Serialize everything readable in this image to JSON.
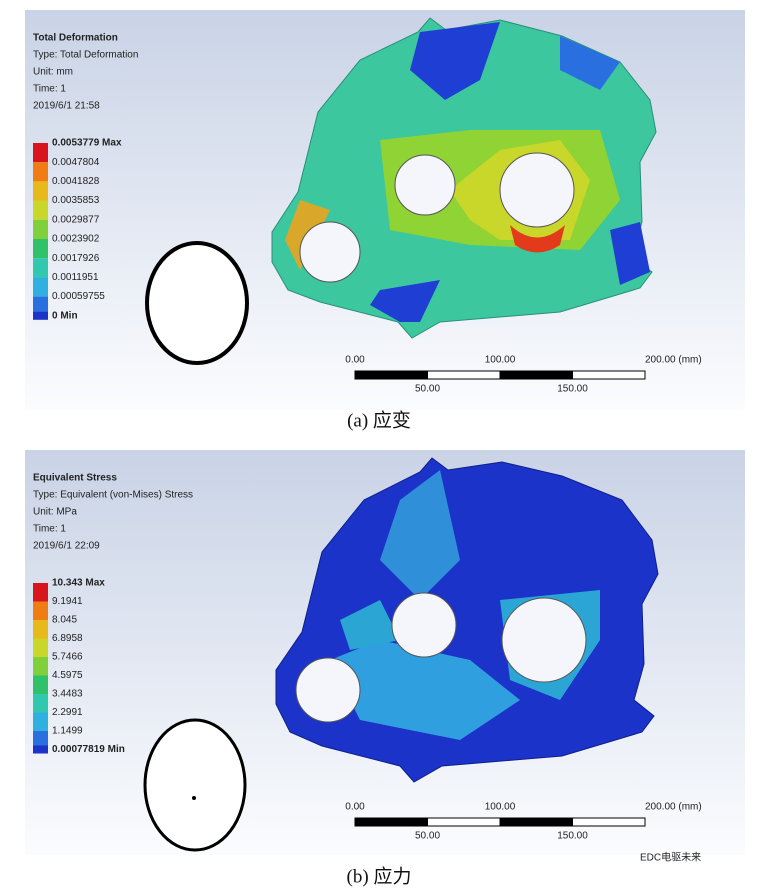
{
  "panels": [
    {
      "info": [
        "Total Deformation",
        "Type: Total Deformation",
        "Unit: mm",
        "Time: 1",
        "2019/6/1 21:58"
      ],
      "legend": [
        "0.0053779 Max",
        "0.0047804",
        "0.0041828",
        "0.0035853",
        "0.0029877",
        "0.0023902",
        "0.0017926",
        "0.0011951",
        "0.00059755",
        "0 Min"
      ],
      "scale_top": [
        "0.00",
        "100.00",
        "200.00 (mm)"
      ],
      "scale_bottom": [
        "50.00",
        "150.00"
      ],
      "caption": "(a) 应变"
    },
    {
      "info": [
        "Equivalent Stress",
        "Type: Equivalent (von-Mises) Stress",
        "Unit: MPa",
        "Time: 1",
        "2019/6/1 22:09"
      ],
      "legend": [
        "10.343 Max",
        "9.1941",
        "8.045",
        "6.8958",
        "5.7466",
        "4.5975",
        "3.4483",
        "2.2991",
        "1.1499",
        "0.00077819 Min"
      ],
      "scale_top": [
        "0.00",
        "100.00",
        "200.00 (mm)"
      ],
      "scale_bottom": [
        "50.00",
        "150.00"
      ],
      "caption": "(b) 应力"
    }
  ],
  "watermark": "EDC电驱未来"
}
